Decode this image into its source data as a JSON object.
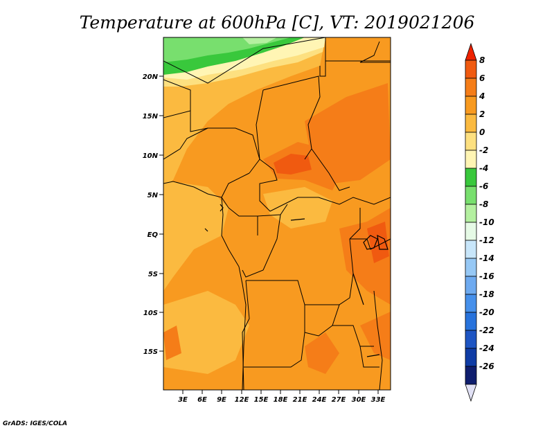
{
  "title": "Temperature at 600hPa [C], VT: 2019021206",
  "credit": "GrADS: IGES/COLA",
  "map": {
    "lon_ticks": [
      "3E",
      "6E",
      "9E",
      "12E",
      "15E",
      "18E",
      "21E",
      "24E",
      "27E",
      "30E",
      "33E"
    ],
    "lat_ticks": [
      "20N",
      "15N",
      "10N",
      "5N",
      "EQ",
      "5S",
      "10S",
      "15S"
    ]
  },
  "colorbar": {
    "labels": [
      "8",
      "6",
      "4",
      "2",
      "0",
      "-2",
      "-4",
      "-6",
      "-8",
      "-10",
      "-12",
      "-14",
      "-16",
      "-18",
      "-20",
      "-22",
      "-24",
      "-26"
    ],
    "colors": [
      "#ee2200",
      "#f05a10",
      "#f57d18",
      "#f89a20",
      "#fbba40",
      "#fde080",
      "#fff5b4",
      "#39c83c",
      "#78df6e",
      "#b4f0a0",
      "#e6fae6",
      "#c8e6fa",
      "#96c8f5",
      "#6eaaf0",
      "#4690eb",
      "#2873dc",
      "#1e55c3",
      "#0f3ca5",
      "#0f1e6e",
      "#e1e1f5"
    ]
  }
}
